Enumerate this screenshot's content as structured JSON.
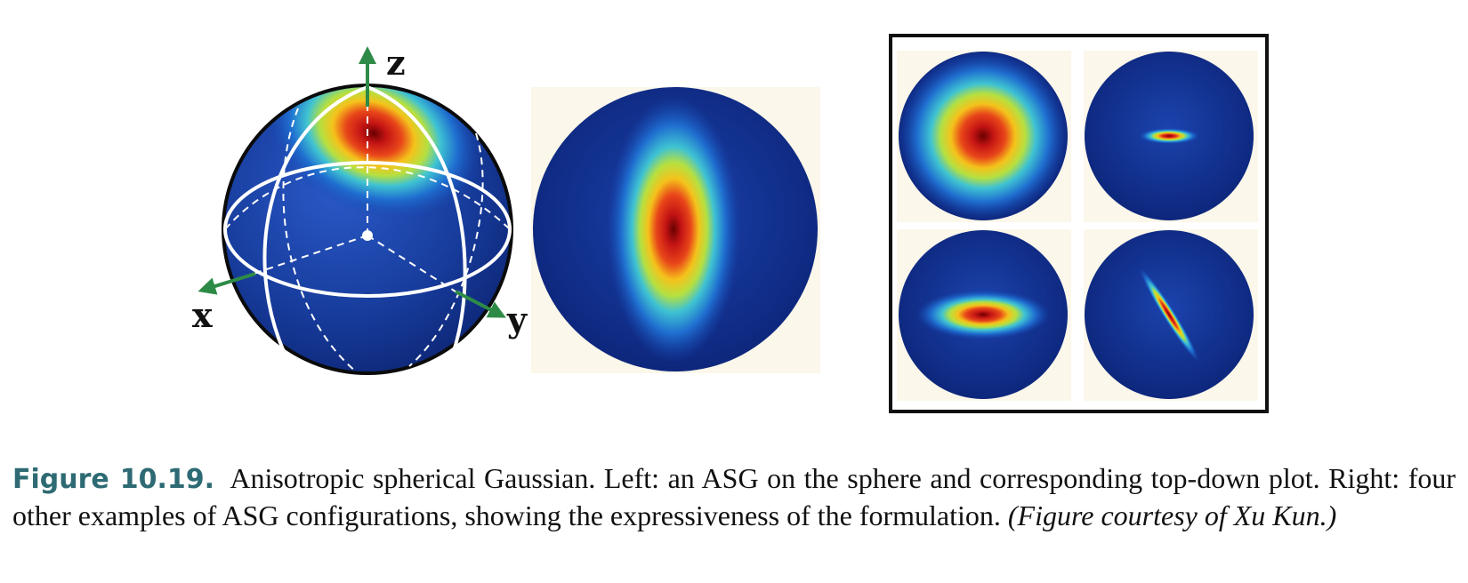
{
  "figure": {
    "axes": {
      "x": "x",
      "y": "y",
      "z": "z"
    },
    "panels": {
      "sphere": "ASG on the sphere",
      "topdown": "corresponding top-down plot",
      "examples": "four other examples of ASG configurations"
    },
    "colors": {
      "background_blue": "#102a86",
      "peak": "#6a0000",
      "axis_arrow": "#2e8b47",
      "frame": "#111111"
    }
  },
  "caption": {
    "label": "Figure 10.19.",
    "text": "Anisotropic spherical Gaussian. Left: an ASG on the sphere and corresponding top-down plot. Right: four other examples of ASG configurations, showing the expressiveness of the formulation.",
    "credit": "(Figure courtesy of Xu Kun.)"
  }
}
